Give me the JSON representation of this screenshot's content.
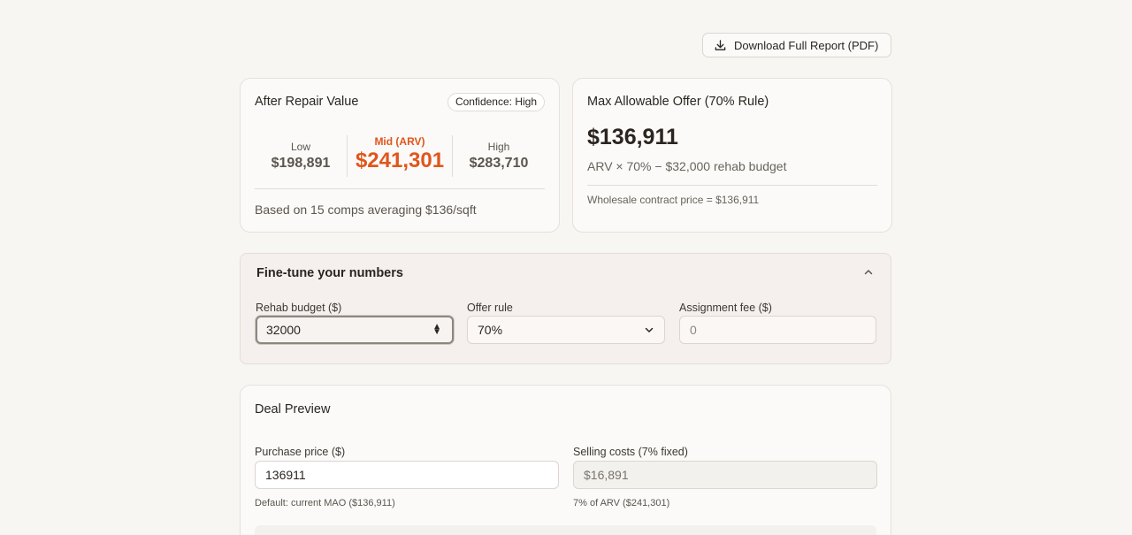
{
  "toolbar": {
    "download_label": "Download Full Report (PDF)"
  },
  "arv": {
    "title": "After Repair Value",
    "confidence": "Confidence: High",
    "low_label": "Low",
    "low_value": "$198,891",
    "mid_label": "Mid (ARV)",
    "mid_value": "$241,301",
    "high_label": "High",
    "high_value": "$283,710",
    "footnote": "Based on 15 comps averaging $136/sqft"
  },
  "mao": {
    "title": "Max Allowable Offer (70% Rule)",
    "value": "$136,911",
    "formula": "ARV × 70% − $32,000 rehab budget",
    "footnote": "Wholesale contract price = $136,911"
  },
  "fine_tune": {
    "title": "Fine-tune your numbers",
    "rehab_label": "Rehab budget ($)",
    "rehab_value": "32000",
    "offer_label": "Offer rule",
    "offer_value": "70%",
    "fee_label": "Assignment fee ($)",
    "fee_placeholder": "0"
  },
  "deal": {
    "title": "Deal Preview",
    "purchase_label": "Purchase price ($)",
    "purchase_value": "136911",
    "purchase_help": "Default: current MAO ($136,911)",
    "selling_label": "Selling costs (7% fixed)",
    "selling_value": "$16,891",
    "selling_help": "7% of ARV ($241,301)"
  },
  "colors": {
    "accent": "#e0561b",
    "background": "#f7f6f3"
  }
}
